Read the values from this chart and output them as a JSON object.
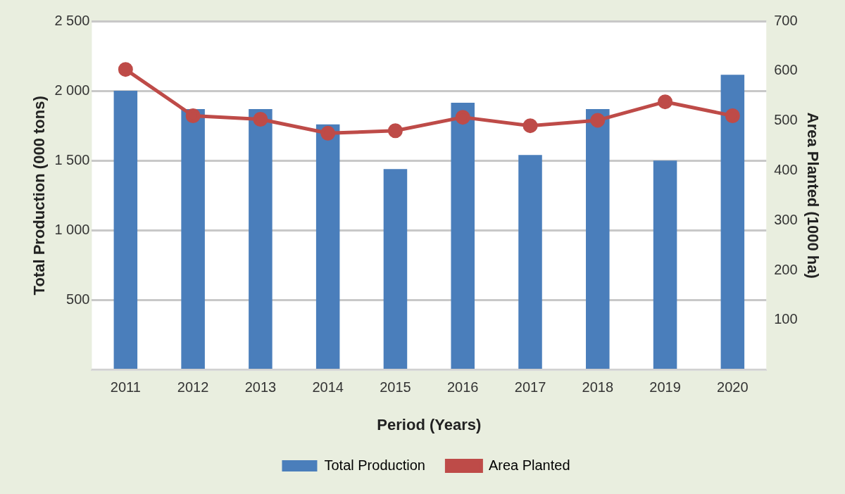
{
  "chart_data": {
    "type": "bar",
    "xlabel": "Period (Years)",
    "ylabel": "Total Production (000 tons)",
    "y2label": "Area Planted (1000 ha)",
    "categories": [
      "2011",
      "2012",
      "2013",
      "2014",
      "2015",
      "2016",
      "2017",
      "2018",
      "2019",
      "2020"
    ],
    "series": [
      {
        "name": "Total Production",
        "color": "#4a7ebb",
        "values": [
          2000,
          1870,
          1870,
          1760,
          1440,
          1915,
          1540,
          1870,
          1500,
          2115
        ]
      },
      {
        "name": "Area Planted",
        "type": "line",
        "axis": "y2",
        "color": "#be4b48",
        "marker": "circle",
        "values": [
          603,
          510,
          503,
          475,
          480,
          507,
          490,
          501,
          538,
          510
        ]
      }
    ],
    "ylim": [
      0,
      2500
    ],
    "yticks": [
      {
        "value": 0,
        "label": null
      },
      500,
      {
        "value": 1000,
        "label": "1 000"
      },
      {
        "value": 1500,
        "label": "1 500"
      },
      {
        "value": 2000,
        "label": "2 000"
      },
      {
        "value": 2500,
        "label": "2 500"
      }
    ],
    "y2lim": [
      0,
      700
    ],
    "y2ticks": [
      100,
      200,
      300,
      400,
      500,
      600,
      700
    ],
    "grid": "y",
    "legend": "bottom"
  }
}
